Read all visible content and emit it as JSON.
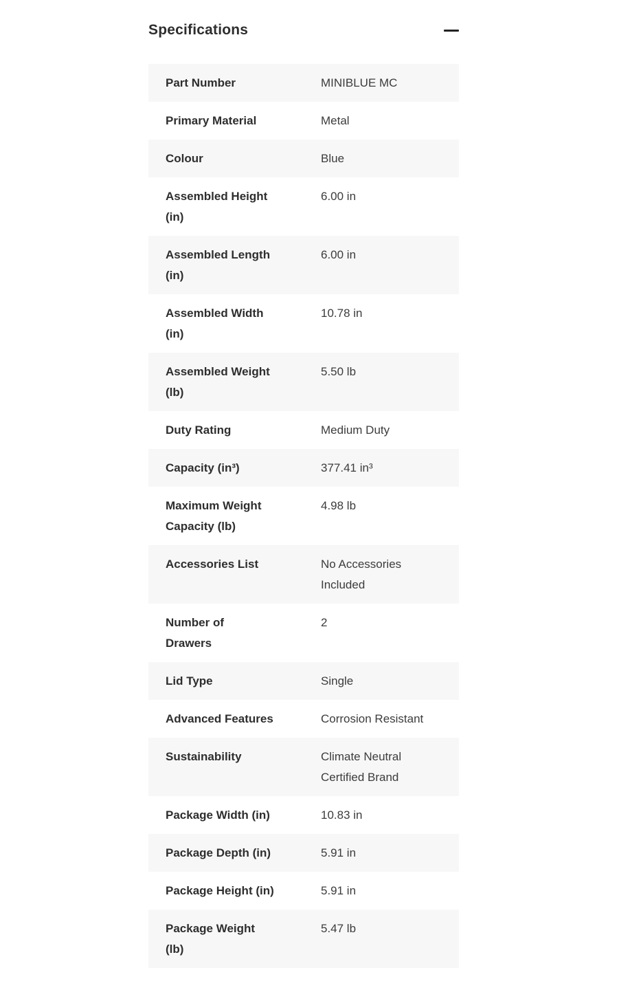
{
  "section": {
    "title": "Specifications",
    "collapse_icon": "minus-icon",
    "state": "expanded"
  },
  "colors": {
    "text_primary": "#2e2e2e",
    "text_value": "#3c3c3c",
    "row_alt_bg": "#f7f7f7",
    "page_bg": "#ffffff",
    "icon": "#222222"
  },
  "specifications": {
    "columns": [
      "label",
      "value"
    ],
    "rows": [
      {
        "label": "Part Number",
        "value": "MINIBLUE MC"
      },
      {
        "label": "Primary Material",
        "value": "Metal"
      },
      {
        "label": "Colour",
        "value": "Blue"
      },
      {
        "label": "Assembled Height\n(in)",
        "value": "6.00 in"
      },
      {
        "label": "Assembled Length\n(in)",
        "value": "6.00 in"
      },
      {
        "label": "Assembled Width\n(in)",
        "value": "10.78 in"
      },
      {
        "label": "Assembled Weight\n(lb)",
        "value": "5.50 lb"
      },
      {
        "label": "Duty Rating",
        "value": "Medium Duty"
      },
      {
        "label": "Capacity (in³)",
        "value": "377.41 in³"
      },
      {
        "label": "Maximum Weight\nCapacity (lb)",
        "value": "4.98 lb"
      },
      {
        "label": "Accessories List",
        "value": "No Accessories\nIncluded"
      },
      {
        "label": "Number of\nDrawers",
        "value": "2"
      },
      {
        "label": "Lid Type",
        "value": "Single"
      },
      {
        "label": "Advanced Features",
        "value": "Corrosion Resistant"
      },
      {
        "label": "Sustainability",
        "value": "Climate Neutral\nCertified Brand"
      },
      {
        "label": "Package Width (in)",
        "value": "10.83 in"
      },
      {
        "label": "Package Depth (in)",
        "value": "5.91 in"
      },
      {
        "label": "Package Height (in)",
        "value": "5.91 in"
      },
      {
        "label": "Package Weight\n(lb)",
        "value": "5.47 lb"
      }
    ]
  }
}
